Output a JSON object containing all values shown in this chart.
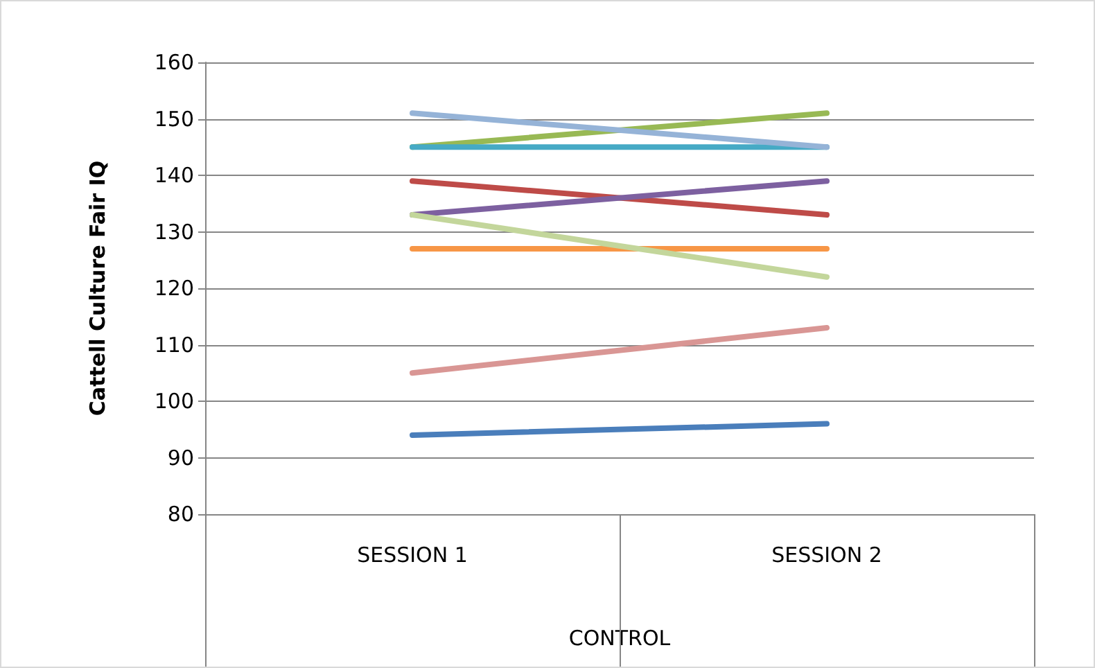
{
  "chart_data": {
    "type": "line",
    "ylabel": "Cattell Culture Fair IQ",
    "xlabel": "CONTROL",
    "categories": [
      "SESSION 1",
      "SESSION 2"
    ],
    "series": [
      {
        "color": "#4a7ebb",
        "values": [
          94,
          96
        ]
      },
      {
        "color": "#be4b48",
        "values": [
          139,
          133
        ]
      },
      {
        "color": "#98b954",
        "values": [
          145,
          151
        ]
      },
      {
        "color": "#7d60a0",
        "values": [
          133,
          139
        ]
      },
      {
        "color": "#46aac5",
        "values": [
          145,
          145
        ]
      },
      {
        "color": "#f79646",
        "values": [
          127,
          127
        ]
      },
      {
        "color": "#95b3d7",
        "values": [
          151,
          145
        ]
      },
      {
        "color": "#d99694",
        "values": [
          105,
          113
        ]
      },
      {
        "color": "#c3d69b",
        "values": [
          133,
          122
        ]
      }
    ],
    "ylim": [
      80,
      160
    ],
    "yticks": [
      80,
      90,
      100,
      110,
      120,
      130,
      140,
      150,
      160
    ],
    "grid": "y",
    "marker": "none",
    "line_style": "solid"
  }
}
